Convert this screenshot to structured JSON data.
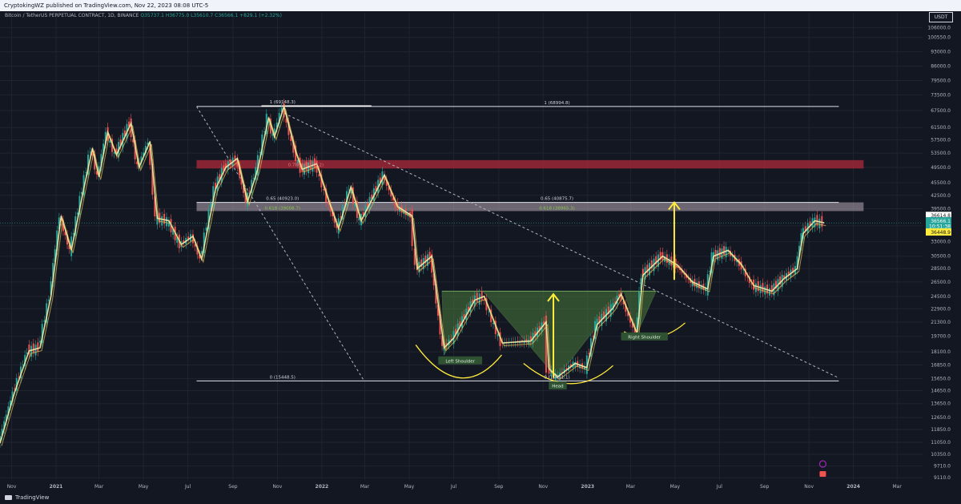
{
  "header": {
    "publisher_text": "CryptokingWZ published on TradingView.com, Nov 22, 2023 08:08 UTC-5"
  },
  "legend": {
    "symbol": "Bitcoin / TetherUS PERPETUAL CONTRACT, 1D, BINANCE",
    "open": "O35737.1",
    "high": "H36775.0",
    "low": "L35610.7",
    "close": "C36566.1",
    "change": "+829.1 (+2.32%)"
  },
  "currency": "USDT",
  "footer": {
    "brand": "TradingView"
  },
  "colors": {
    "background": "#131722",
    "up": "#26a69a",
    "down": "#ef5350",
    "ma": "#f5f0a8",
    "yellow": "#ffeb3b",
    "zone_red": "#9c2737",
    "zone_grey": "#b7a8b4",
    "pattern": "#4a7a3b"
  },
  "chart_data": {
    "type": "candlestick",
    "scale": "log",
    "ylim": [
      9000,
      115000
    ],
    "y_ticks": [
      "106000.0",
      "100550.0",
      "93000.0",
      "86000.0",
      "79500.0",
      "73500.0",
      "67500.0",
      "61500.0",
      "57500.0",
      "53500.0",
      "49500.0",
      "45500.0",
      "42500.0",
      "39500.0",
      "36000.0",
      "33000.0",
      "30500.0",
      "28500.0",
      "26500.0",
      "24500.0",
      "22900.0",
      "21300.0",
      "19700.0",
      "18100.0",
      "16850.0",
      "15650.0",
      "14650.0",
      "13650.0",
      "12650.0",
      "11850.0",
      "11050.0",
      "10350.0",
      "9710.0",
      "9110.0"
    ],
    "x_ticks": [
      "Nov",
      "2021",
      "Mar",
      "May",
      "Jul",
      "Sep",
      "Nov",
      "2022",
      "Mar",
      "May",
      "Jul",
      "Sep",
      "Nov",
      "2023",
      "Mar",
      "May",
      "Jul",
      "Sep",
      "Nov",
      "2024",
      "Mar"
    ],
    "x_ticks_bold": [
      "2021",
      "2022",
      "2023",
      "2024"
    ],
    "x_range": [
      "2020-10-16",
      "2024-04-05"
    ],
    "price_series": [
      [
        "2020-10-16",
        11000
      ],
      [
        "2020-11-05",
        14500
      ],
      [
        "2020-11-25",
        18200
      ],
      [
        "2020-12-10",
        18500
      ],
      [
        "2020-12-25",
        24500
      ],
      [
        "2021-01-08",
        38000
      ],
      [
        "2021-01-22",
        31500
      ],
      [
        "2021-02-08",
        44000
      ],
      [
        "2021-02-20",
        55000
      ],
      [
        "2021-03-01",
        47000
      ],
      [
        "2021-03-13",
        60000
      ],
      [
        "2021-03-25",
        53000
      ],
      [
        "2021-04-14",
        63000
      ],
      [
        "2021-04-25",
        49500
      ],
      [
        "2021-05-10",
        57000
      ],
      [
        "2021-05-20",
        37500
      ],
      [
        "2021-06-05",
        37000
      ],
      [
        "2021-06-22",
        32500
      ],
      [
        "2021-07-08",
        34000
      ],
      [
        "2021-07-20",
        30000
      ],
      [
        "2021-08-08",
        44000
      ],
      [
        "2021-08-22",
        49500
      ],
      [
        "2021-09-07",
        52000
      ],
      [
        "2021-09-21",
        41000
      ],
      [
        "2021-10-05",
        49000
      ],
      [
        "2021-10-20",
        65000
      ],
      [
        "2021-10-28",
        58500
      ],
      [
        "2021-11-10",
        69000
      ],
      [
        "2021-11-26",
        54000
      ],
      [
        "2021-12-05",
        49000
      ],
      [
        "2021-12-25",
        50500
      ],
      [
        "2022-01-10",
        41500
      ],
      [
        "2022-01-24",
        35500
      ],
      [
        "2022-02-10",
        44500
      ],
      [
        "2022-02-24",
        37000
      ],
      [
        "2022-03-28",
        47500
      ],
      [
        "2022-04-15",
        40000
      ],
      [
        "2022-05-05",
        38000
      ],
      [
        "2022-05-12",
        28500
      ],
      [
        "2022-06-01",
        30500
      ],
      [
        "2022-06-18",
        18500
      ],
      [
        "2022-07-01",
        19500
      ],
      [
        "2022-07-30",
        24000
      ],
      [
        "2022-08-12",
        24500
      ],
      [
        "2022-09-06",
        19000
      ],
      [
        "2022-10-15",
        19200
      ],
      [
        "2022-11-05",
        21300
      ],
      [
        "2022-11-09",
        16500
      ],
      [
        "2022-11-21",
        15800
      ],
      [
        "2022-12-15",
        17000
      ],
      [
        "2022-12-31",
        16600
      ],
      [
        "2023-01-14",
        21000
      ],
      [
        "2023-02-05",
        23000
      ],
      [
        "2023-02-16",
        24800
      ],
      [
        "2023-03-10",
        20000
      ],
      [
        "2023-03-18",
        27500
      ],
      [
        "2023-04-14",
        30500
      ],
      [
        "2023-05-05",
        29000
      ],
      [
        "2023-05-25",
        26500
      ],
      [
        "2023-06-15",
        25500
      ],
      [
        "2023-06-23",
        30500
      ],
      [
        "2023-07-13",
        31500
      ],
      [
        "2023-07-31",
        29200
      ],
      [
        "2023-08-17",
        26000
      ],
      [
        "2023-09-11",
        25200
      ],
      [
        "2023-09-28",
        27000
      ],
      [
        "2023-10-16",
        28500
      ],
      [
        "2023-10-24",
        34500
      ],
      [
        "2023-11-09",
        37000
      ],
      [
        "2023-11-22",
        36566
      ]
    ],
    "annotations": {
      "fib_top_left": "1 (69148.3)",
      "fib_top_right": "1 (68994.8)",
      "fib_065_left": "0.65 (40923.0)",
      "fib_065_right": "0.65 (40875.7)",
      "fib_0618_left": "0.618 (39008.7)",
      "fib_0618_right": "0.618 (38965.3)",
      "fib_0786_left": "0.786 (50179.2)",
      "fib_bottom_left": "0 (15448.5)",
      "fib_bottom_mid": "0 (15461.1)",
      "left_shoulder": "Left Shoulder",
      "head": "Head",
      "right_shoulder": "Right Shoulder"
    },
    "price_labels": [
      {
        "value": "36614.8",
        "bg": "#ffffff",
        "fg": "#131722"
      },
      {
        "value": "36566.1",
        "bg": "#26a69a",
        "fg": "#ffffff"
      },
      {
        "value": "10:51:38",
        "bg": "#26a69a",
        "fg": "#ffffff"
      },
      {
        "value": "36448.9",
        "bg": "#ffeb3b",
        "fg": "#131722"
      }
    ]
  }
}
